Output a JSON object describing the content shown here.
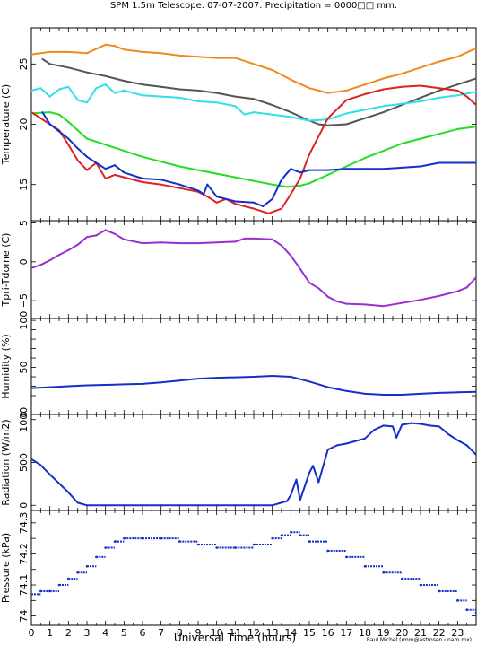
{
  "title": "SPM 1.5m Telescope. 07-07-2007. Precipitation = 0000□□ mm.",
  "xlabel": "Universal Time (hours)",
  "credit": "Raul Michel (rmm@astrosen.unam.mx)",
  "colors": {
    "orange": "#f0891e",
    "gray": "#555555",
    "cyan": "#2fe0e8",
    "red": "#dd2222",
    "green": "#22dd22",
    "blue": "#1530c8",
    "purple": "#9a2fd0",
    "axis": "#000000"
  },
  "chart_data": [
    {
      "type": "line",
      "ylabel": "Temperature (C)",
      "xlim": [
        0,
        24
      ],
      "ylim": [
        12,
        28
      ],
      "yticks": [
        15,
        20,
        25
      ],
      "xticks": [
        0,
        1,
        2,
        3,
        4,
        5,
        6,
        7,
        8,
        9,
        10,
        11,
        12,
        13,
        14,
        15,
        16,
        17,
        18,
        19,
        20,
        21,
        22,
        23
      ],
      "series": [
        {
          "color": "orange",
          "x": [
            0,
            1,
            2,
            3,
            4,
            4.5,
            5,
            6,
            7,
            8,
            9,
            10,
            11,
            12,
            13,
            14,
            15,
            16,
            17,
            18,
            19,
            20,
            21,
            22,
            23,
            24
          ],
          "y": [
            25.8,
            26,
            26,
            25.9,
            26.6,
            26.5,
            26.2,
            26,
            25.9,
            25.7,
            25.6,
            25.5,
            25.5,
            25,
            24.5,
            23.7,
            23,
            22.6,
            22.8,
            23.3,
            23.8,
            24.2,
            24.7,
            25.2,
            25.6,
            26.3
          ]
        },
        {
          "color": "gray",
          "x": [
            0.6,
            1,
            2,
            3,
            4,
            5,
            6,
            7,
            8,
            9,
            10,
            11,
            12,
            13,
            14,
            15,
            15.5,
            16,
            17,
            18,
            19,
            20,
            21,
            22,
            23,
            24
          ],
          "y": [
            25.4,
            25,
            24.7,
            24.3,
            24,
            23.6,
            23.3,
            23.1,
            22.9,
            22.8,
            22.6,
            22.3,
            22.1,
            21.6,
            21,
            20.3,
            20,
            19.9,
            20,
            20.5,
            21,
            21.6,
            22.2,
            22.8,
            23.3,
            23.8
          ]
        },
        {
          "color": "cyan",
          "x": [
            0,
            0.5,
            1,
            1.5,
            2,
            2.5,
            3,
            3.5,
            4,
            4.5,
            5,
            6,
            7,
            8,
            9,
            10,
            11,
            11.5,
            12,
            13,
            14,
            15,
            16,
            17,
            18,
            19,
            20,
            21,
            22,
            23,
            24
          ],
          "y": [
            22.8,
            23,
            22.3,
            22.9,
            23.1,
            22,
            21.8,
            23,
            23.3,
            22.6,
            22.8,
            22.4,
            22.3,
            22.2,
            21.9,
            21.8,
            21.5,
            20.8,
            21,
            20.8,
            20.6,
            20.3,
            20.4,
            20.9,
            21.2,
            21.5,
            21.7,
            21.9,
            22.2,
            22.4,
            22.7
          ]
        },
        {
          "color": "green",
          "x": [
            0,
            1,
            1.5,
            2,
            3,
            4,
            5,
            6,
            7,
            8,
            9,
            10,
            11,
            12,
            13,
            13.8,
            14.5,
            15,
            16,
            17,
            18,
            19,
            20,
            21,
            22,
            23,
            24
          ],
          "y": [
            20.9,
            21,
            20.8,
            20.2,
            18.8,
            18.3,
            17.8,
            17.3,
            16.9,
            16.5,
            16.2,
            15.9,
            15.6,
            15.3,
            15,
            14.8,
            14.9,
            15.1,
            15.8,
            16.5,
            17.2,
            17.8,
            18.4,
            18.8,
            19.2,
            19.6,
            19.8
          ]
        },
        {
          "color": "red",
          "x": [
            0,
            1,
            1.5,
            2,
            2.5,
            3,
            3.5,
            4,
            4.5,
            5,
            6,
            7,
            8,
            9,
            9.5,
            10,
            10.5,
            11,
            12,
            12.8,
            13.5,
            14,
            14.5,
            15,
            16,
            17,
            18,
            19,
            20,
            21,
            22,
            23,
            23.5,
            24
          ],
          "y": [
            21,
            20,
            19.5,
            18.3,
            17,
            16.2,
            16.8,
            15.5,
            15.8,
            15.6,
            15.2,
            15,
            14.7,
            14.4,
            14,
            13.5,
            13.8,
            13.4,
            13,
            12.6,
            13,
            14.2,
            15.5,
            17.5,
            20.5,
            22,
            22.5,
            22.9,
            23.1,
            23.2,
            23,
            22.8,
            22.3,
            21.6
          ]
        },
        {
          "color": "blue",
          "x": [
            0.6,
            1,
            2,
            2.5,
            3,
            3.5,
            4,
            4.5,
            5,
            6,
            7,
            8,
            9,
            9.3,
            9.5,
            10,
            10.5,
            11,
            12,
            12.5,
            13,
            13.5,
            14,
            14.5,
            15,
            16,
            17,
            18,
            19,
            20,
            21,
            22,
            23,
            24
          ],
          "y": [
            21,
            20,
            18.8,
            18,
            17.3,
            16.8,
            16.3,
            16.6,
            16,
            15.5,
            15.4,
            15,
            14.5,
            14.2,
            15,
            14,
            13.8,
            13.6,
            13.5,
            13.2,
            13.8,
            15.4,
            16.3,
            16,
            16.2,
            16.2,
            16.3,
            16.3,
            16.3,
            16.4,
            16.5,
            16.8,
            16.8,
            16.8
          ]
        }
      ]
    },
    {
      "type": "line",
      "ylabel": "Tpri-Tdome (C)",
      "xlim": [
        0,
        24
      ],
      "ylim": [
        -7.3,
        5.3
      ],
      "yticks": [
        -5,
        0,
        5
      ],
      "ytick_labels": [
        "−5",
        "0",
        "5"
      ],
      "series": [
        {
          "color": "purple",
          "x": [
            0,
            0.5,
            1,
            1.5,
            2,
            2.5,
            3,
            3.5,
            4,
            4.5,
            5,
            6,
            7,
            8,
            9,
            10,
            11,
            11.5,
            12,
            13,
            13.5,
            14,
            14.5,
            15,
            15.5,
            16,
            16.5,
            17,
            18,
            19,
            20,
            21,
            22,
            23,
            23.5,
            24
          ],
          "y": [
            -0.8,
            -0.4,
            0.2,
            0.9,
            1.5,
            2.2,
            3.2,
            3.4,
            4.1,
            3.6,
            2.9,
            2.4,
            2.5,
            2.4,
            2.4,
            2.5,
            2.6,
            3,
            3,
            2.9,
            2.1,
            0.8,
            -0.9,
            -2.7,
            -3.4,
            -4.5,
            -5.1,
            -5.4,
            -5.5,
            -5.7,
            -5.3,
            -4.9,
            -4.4,
            -3.8,
            -3.3,
            -2
          ]
        }
      ]
    },
    {
      "type": "line",
      "ylabel": "Humidity (%)",
      "xlim": [
        0,
        24
      ],
      "ylim": [
        0,
        102
      ],
      "yticks": [
        0,
        10,
        20,
        30,
        40,
        50,
        60,
        70,
        80,
        90,
        100
      ],
      "ytick_labels": [
        "0",
        "",
        "",
        "",
        "",
        "50",
        "",
        "",
        "",
        "",
        "100"
      ],
      "series": [
        {
          "color": "blue",
          "x": [
            0,
            1,
            2,
            3,
            4,
            5,
            6,
            7,
            8,
            9,
            10,
            11,
            12,
            13,
            14,
            15,
            16,
            17,
            18,
            19,
            20,
            21,
            22,
            23,
            24
          ],
          "y": [
            28,
            29,
            30,
            31,
            31.5,
            32,
            32.5,
            34,
            36,
            38,
            39,
            39.5,
            40,
            41,
            40,
            35,
            29,
            25,
            22,
            21,
            21,
            22,
            23,
            23.5,
            24
          ]
        }
      ]
    },
    {
      "type": "line",
      "ylabel": "Radiation (W/m2)",
      "xlim": [
        0,
        24
      ],
      "ylim": [
        -60,
        1060
      ],
      "yticks": [
        0,
        500,
        1000
      ],
      "series": [
        {
          "color": "blue",
          "x": [
            0,
            0.5,
            1,
            2,
            2.5,
            3,
            4,
            5,
            6,
            7,
            8,
            9,
            10,
            11,
            12,
            13,
            13.8,
            14,
            14.3,
            14.5,
            15,
            15.2,
            15.5,
            16,
            16.5,
            17,
            17.5,
            18,
            18.5,
            19,
            19.5,
            19.7,
            20,
            20.5,
            21,
            21.5,
            22,
            22.5,
            23,
            23.5,
            24
          ],
          "y": [
            540,
            470,
            360,
            150,
            30,
            0,
            0,
            0,
            0,
            0,
            0,
            0,
            0,
            0,
            0,
            0,
            50,
            120,
            300,
            60,
            380,
            460,
            270,
            650,
            700,
            720,
            750,
            780,
            880,
            930,
            920,
            790,
            940,
            960,
            950,
            930,
            920,
            830,
            760,
            700,
            590
          ]
        }
      ]
    },
    {
      "type": "scatter",
      "ylabel": "Pressure (kPa)",
      "xlim": [
        0,
        24
      ],
      "ylim": [
        73.97,
        74.34
      ],
      "yticks": [
        74,
        74.05,
        74.1,
        74.15,
        74.2,
        74.25,
        74.3
      ],
      "ytick_labels": [
        "74",
        "",
        "74.1",
        "",
        "74.2",
        "",
        "74.3"
      ],
      "series": [
        {
          "color": "blue",
          "x": [
            0,
            0.5,
            1,
            1.5,
            2,
            2.5,
            3,
            3.5,
            4,
            4.5,
            5,
            6,
            7,
            8,
            9,
            10,
            11,
            12,
            13,
            13.5,
            14,
            14.5,
            15,
            16,
            17,
            18,
            19,
            20,
            21,
            22,
            23,
            23.5,
            24
          ],
          "y": [
            74.07,
            74.08,
            74.08,
            74.1,
            74.12,
            74.14,
            74.16,
            74.19,
            74.22,
            74.24,
            74.25,
            74.25,
            74.25,
            74.24,
            74.23,
            74.22,
            74.22,
            74.23,
            74.25,
            74.26,
            74.27,
            74.26,
            74.24,
            74.21,
            74.19,
            74.16,
            74.14,
            74.12,
            74.1,
            74.08,
            74.05,
            74.02,
            74.01
          ]
        }
      ]
    }
  ]
}
